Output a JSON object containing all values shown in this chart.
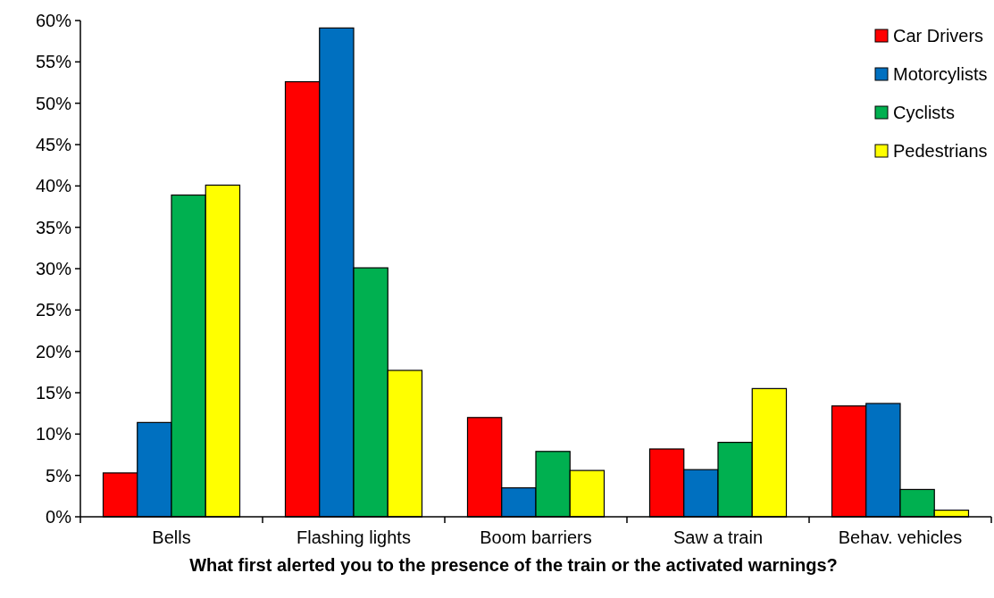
{
  "chart_data": {
    "type": "bar",
    "xlabel": "What first alerted you to the presence of the train or the activated warnings?",
    "categories": [
      "Bells",
      "Flashing lights",
      "Boom barriers",
      "Saw a train",
      "Behav. vehicles"
    ],
    "series": [
      {
        "name": "Car Drivers",
        "color": "#ff0000",
        "values": [
          5.3,
          52.6,
          12.0,
          8.2,
          13.4
        ]
      },
      {
        "name": "Motorcylists",
        "color": "#0070c0",
        "values": [
          11.4,
          59.1,
          3.5,
          5.7,
          13.7
        ]
      },
      {
        "name": "Cyclists",
        "color": "#00b050",
        "values": [
          38.9,
          30.1,
          7.9,
          9.0,
          3.3
        ]
      },
      {
        "name": "Pedestrians",
        "color": "#ffff00",
        "values": [
          40.1,
          17.7,
          5.6,
          15.5,
          0.8
        ]
      }
    ],
    "ylim": [
      0,
      60
    ],
    "yticks": [
      {
        "value": 0,
        "label": "0%"
      },
      {
        "value": 5,
        "label": "5%"
      },
      {
        "value": 10,
        "label": "10%"
      },
      {
        "value": 15,
        "label": "15%"
      },
      {
        "value": 20,
        "label": "20%"
      },
      {
        "value": 25,
        "label": "25%"
      },
      {
        "value": 30,
        "label": "30%"
      },
      {
        "value": 35,
        "label": "35%"
      },
      {
        "value": 40,
        "label": "40%"
      },
      {
        "value": 45,
        "label": "45%"
      },
      {
        "value": 50,
        "label": "50%"
      },
      {
        "value": 55,
        "label": "55%"
      },
      {
        "value": 60,
        "label": "60%"
      }
    ],
    "grid": false,
    "legend": "top right"
  }
}
